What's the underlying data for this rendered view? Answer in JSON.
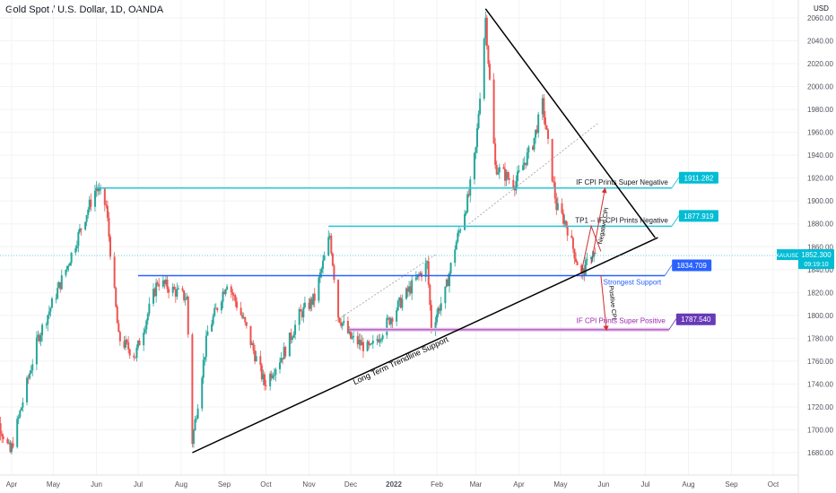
{
  "header": {
    "title": "Gold Spot / U.S. Dollar, 1D, OANDA",
    "currency": "USD"
  },
  "colors": {
    "up": "#26a69a",
    "down": "#ef5350",
    "teal": "#26c6da",
    "blue": "#2962ff",
    "purple": "#9c27b0",
    "purple_dark": "#673ab7",
    "price_teal": "#00bcd4",
    "grid": "#f2f3f5"
  },
  "chart_data": {
    "type": "candlestick",
    "y_axis": {
      "min": 1660,
      "max": 2070,
      "ticks": [
        1680,
        1700,
        1720,
        1740,
        1760,
        1780,
        1800,
        1820,
        1840,
        1860,
        1880,
        1900,
        1920,
        1940,
        1960,
        1980,
        2000,
        2020,
        2040,
        2060
      ]
    },
    "x_axis": {
      "labels": [
        "Apr",
        "May",
        "Jun",
        "Jul",
        "Aug",
        "Sep",
        "Oct",
        "Nov",
        "Dec",
        "2022",
        "Feb",
        "Mar",
        "Apr",
        "May",
        "Jun",
        "Jul",
        "Aug",
        "Sep",
        "Oct"
      ]
    },
    "anchors": [
      [
        "2021-03-15",
        1730
      ],
      [
        "2021-03-31",
        1680
      ],
      [
        "2021-04-20",
        1780
      ],
      [
        "2021-05-10",
        1840
      ],
      [
        "2021-05-25",
        1890
      ],
      [
        "2021-06-01",
        1912
      ],
      [
        "2021-06-08",
        1895
      ],
      [
        "2021-06-17",
        1780
      ],
      [
        "2021-06-29",
        1765
      ],
      [
        "2021-07-15",
        1830
      ],
      [
        "2021-08-05",
        1815
      ],
      [
        "2021-08-09",
        1690
      ],
      [
        "2021-08-20",
        1785
      ],
      [
        "2021-09-03",
        1830
      ],
      [
        "2021-09-15",
        1795
      ],
      [
        "2021-09-30",
        1740
      ],
      [
        "2021-10-15",
        1770
      ],
      [
        "2021-10-25",
        1800
      ],
      [
        "2021-11-05",
        1815
      ],
      [
        "2021-11-16",
        1870
      ],
      [
        "2021-11-22",
        1800
      ],
      [
        "2021-12-01",
        1780
      ],
      [
        "2021-12-15",
        1770
      ],
      [
        "2022-01-05",
        1810
      ],
      [
        "2022-01-25",
        1845
      ],
      [
        "2022-01-28",
        1790
      ],
      [
        "2022-02-07",
        1820
      ],
      [
        "2022-02-14",
        1860
      ],
      [
        "2022-02-24",
        1905
      ],
      [
        "2022-03-01",
        1945
      ],
      [
        "2022-03-08",
        2060
      ],
      [
        "2022-03-15",
        1930
      ],
      [
        "2022-03-29",
        1915
      ],
      [
        "2022-04-11",
        1950
      ],
      [
        "2022-04-18",
        1985
      ],
      [
        "2022-04-28",
        1895
      ],
      [
        "2022-05-05",
        1880
      ],
      [
        "2022-05-12",
        1850
      ],
      [
        "2022-05-16",
        1835
      ],
      [
        "2022-05-20",
        1845
      ],
      [
        "2022-05-23",
        1855
      ],
      [
        "2022-05-26",
        1852.3
      ]
    ],
    "levels": [
      {
        "value": 1911.282,
        "label": "IF CPI Prints Super Negative",
        "tag": "1911.282",
        "color": "#26c6da",
        "from": "2021-06-01",
        "to": "2022-07-20"
      },
      {
        "value": 1877.919,
        "label": "TP1 -- IF CPI Prints Negative",
        "tag": "1877.919",
        "color": "#26c6da",
        "from": "2021-11-15",
        "to": "2022-07-20"
      },
      {
        "value": 1834.709,
        "label": "Strongest Support",
        "tag": "1834.709",
        "color": "#2962ff",
        "from": "2021-07-01",
        "to": "2022-07-15"
      },
      {
        "value": 1787.54,
        "label": "IF CPI Prints Super Positive",
        "tag": "1787.540",
        "color": "#ba68c8",
        "from": "2021-11-30",
        "to": "2022-07-18"
      }
    ],
    "trendlines": [
      {
        "from": [
          "2021-08-09",
          1680
        ],
        "to": [
          "2022-07-10",
          1868
        ],
        "label": "Long Term Trendline Support"
      },
      {
        "from": [
          "2022-03-08",
          2068
        ],
        "to": [
          "2022-07-08",
          1868
        ]
      }
    ],
    "channel_lines": [
      {
        "from": [
          "2021-11-20",
          1795
        ],
        "to": [
          "2022-01-31",
          1853
        ]
      },
      {
        "from": [
          "2022-02-24",
          1880
        ],
        "to": [
          "2022-05-28",
          1968
        ]
      }
    ],
    "arrows": [
      {
        "from": [
          "2022-05-23",
          1845
        ],
        "to": [
          "2022-06-02",
          1911
        ],
        "label": "Negative CPI"
      },
      {
        "from": [
          "2022-05-30",
          1835
        ],
        "to": [
          "2022-06-03",
          1787
        ],
        "label": "Positive CPI"
      }
    ],
    "current_price": {
      "symbol": "XAUUSD",
      "value": "1852.300",
      "countdown": "09:19:10"
    }
  }
}
